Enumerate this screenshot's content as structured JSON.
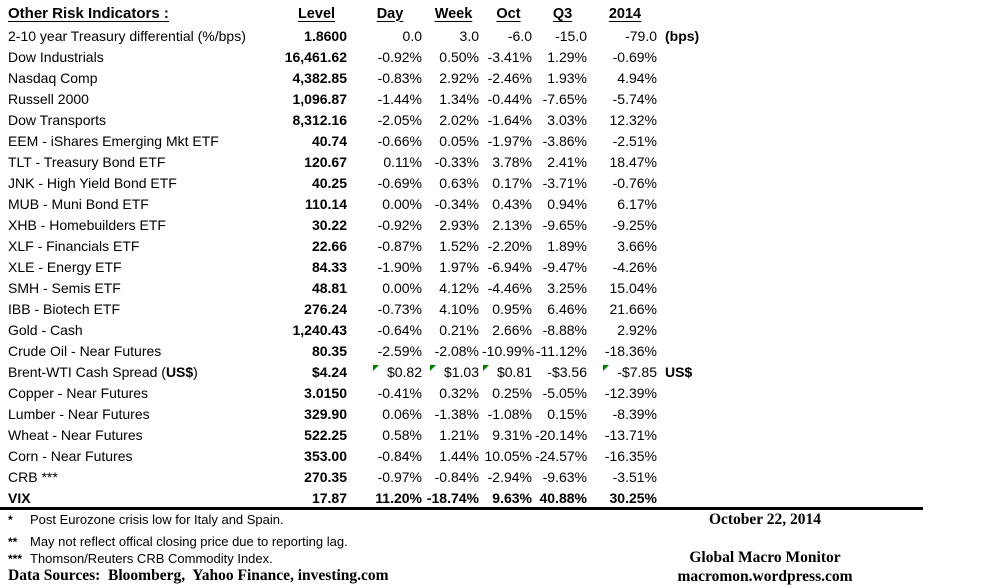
{
  "table": {
    "title": "Other Risk Indicators :",
    "columns": {
      "level": "Level",
      "day": "Day",
      "week": "Week",
      "oct": "Oct",
      "q3": "Q3",
      "y2014": "2014"
    },
    "rows": [
      {
        "name": "2-10 year Treasury differential (%/bps)",
        "level": "1.8600",
        "day": "0.0",
        "week": "3.0",
        "oct": "-6.0",
        "q3": "-15.0",
        "y2014": "-79.0",
        "note": "(bps)"
      },
      {
        "name": "Dow Industrials",
        "level": "16,461.62",
        "day": "-0.92%",
        "week": "0.50%",
        "oct": "-3.41%",
        "q3": "1.29%",
        "y2014": "-0.69%"
      },
      {
        "name": "Nasdaq Comp",
        "level": "4,382.85",
        "day": "-0.83%",
        "week": "2.92%",
        "oct": "-2.46%",
        "q3": "1.93%",
        "y2014": "4.94%"
      },
      {
        "name": "Russell 2000",
        "level": "1,096.87",
        "day": "-1.44%",
        "week": "1.34%",
        "oct": "-0.44%",
        "q3": "-7.65%",
        "y2014": "-5.74%"
      },
      {
        "name": "Dow Transports",
        "level": "8,312.16",
        "day": "-2.05%",
        "week": "2.02%",
        "oct": "-1.64%",
        "q3": "3.03%",
        "y2014": "12.32%"
      },
      {
        "name": "EEM - iShares Emerging Mkt ETF",
        "level": "40.74",
        "day": "-0.66%",
        "week": "0.05%",
        "oct": "-1.97%",
        "q3": "-3.86%",
        "y2014": "-2.51%"
      },
      {
        "name": "TLT - Treasury Bond ETF",
        "level": "120.67",
        "day": "0.11%",
        "week": "-0.33%",
        "oct": "3.78%",
        "q3": "2.41%",
        "y2014": "18.47%"
      },
      {
        "name": "JNK - High Yield Bond ETF",
        "level": "40.25",
        "day": "-0.69%",
        "week": "0.63%",
        "oct": "0.17%",
        "q3": "-3.71%",
        "y2014": "-0.76%"
      },
      {
        "name": "MUB - Muni Bond ETF",
        "level": "110.14",
        "day": "0.00%",
        "week": "-0.34%",
        "oct": "0.43%",
        "q3": "0.94%",
        "y2014": "6.17%"
      },
      {
        "name": "XHB - Homebuilders ETF",
        "level": "30.22",
        "day": "-0.92%",
        "week": "2.93%",
        "oct": "2.13%",
        "q3": "-9.65%",
        "y2014": "-9.25%"
      },
      {
        "name": "XLF - Financials ETF",
        "level": "22.66",
        "day": "-0.87%",
        "week": "1.52%",
        "oct": "-2.20%",
        "q3": "1.89%",
        "y2014": "3.66%"
      },
      {
        "name": "XLE - Energy ETF",
        "level": "84.33",
        "day": "-1.90%",
        "week": "1.97%",
        "oct": "-6.94%",
        "q3": "-9.47%",
        "y2014": "-4.26%"
      },
      {
        "name": "SMH - Semis ETF",
        "level": "48.81",
        "day": "0.00%",
        "week": "4.12%",
        "oct": "-4.46%",
        "q3": "3.25%",
        "y2014": "15.04%"
      },
      {
        "name": "IBB - Biotech ETF",
        "level": "276.24",
        "day": "-0.73%",
        "week": "4.10%",
        "oct": "0.95%",
        "q3": "6.46%",
        "y2014": "21.66%"
      },
      {
        "name": "Gold - Cash",
        "level": "1,240.43",
        "day": "-0.64%",
        "week": "0.21%",
        "oct": "2.66%",
        "q3": "-8.88%",
        "y2014": "2.92%"
      },
      {
        "name": "Crude Oil - Near Futures",
        "level": "80.35",
        "day": "-2.59%",
        "week": "-2.08%",
        "oct": "-10.99%",
        "q3": "-11.12%",
        "y2014": "-18.36%"
      },
      {
        "name": "Brent-WTI Cash Spread (US$)",
        "name_parts": {
          "pre": "Brent-WTI Cash Spread (",
          "bold": "US$",
          "post": ")"
        },
        "level": "$4.24",
        "day": "$0.82",
        "week": "$1.03",
        "oct": "$0.81",
        "q3": "-$3.56",
        "y2014": "-$7.85",
        "note": "US$",
        "flags": [
          "day",
          "week",
          "oct",
          "y2014"
        ]
      },
      {
        "name": "Copper - Near Futures",
        "level": "3.0150",
        "day": "-0.41%",
        "week": "0.32%",
        "oct": "0.25%",
        "q3": "-5.05%",
        "y2014": "-12.39%"
      },
      {
        "name": "Lumber - Near Futures",
        "level": "329.90",
        "day": "0.06%",
        "week": "-1.38%",
        "oct": "-1.08%",
        "q3": "0.15%",
        "y2014": "-8.39%"
      },
      {
        "name": "Wheat - Near Futures",
        "level": "522.25",
        "day": "0.58%",
        "week": "1.21%",
        "oct": "9.31%",
        "q3": "-20.14%",
        "y2014": "-13.71%"
      },
      {
        "name": "Corn - Near Futures",
        "level": "353.00",
        "day": "-0.84%",
        "week": "1.44%",
        "oct": "10.05%",
        "q3": "-24.57%",
        "y2014": "-16.35%"
      },
      {
        "name": "CRB ***",
        "level": "270.35",
        "day": "-0.97%",
        "week": "-0.84%",
        "oct": "-2.94%",
        "q3": "-9.63%",
        "y2014": "-3.51%"
      },
      {
        "name": "VIX",
        "level": "17.87",
        "day": "11.20%",
        "week": "-18.74%",
        "oct": "9.63%",
        "q3": "40.88%",
        "y2014": "30.25%",
        "bold": true
      }
    ]
  },
  "footnotes": [
    {
      "marker": "*",
      "text": "Post Eurozone crisis low for Italy and Spain."
    },
    {
      "marker": "**",
      "text": "May not reflect offical closing price due to reporting lag."
    },
    {
      "marker": "***",
      "text": "Thomson/Reuters CRB Commodity Index."
    }
  ],
  "footer": {
    "data_sources": "Data Sources:  Bloomberg,  Yahoo Finance, investing.com",
    "right": {
      "date": "October 22, 2014",
      "brand": "Global Macro Monitor",
      "site": "macromon.wordpress.com"
    }
  },
  "colors": {
    "text": "#000000",
    "flag_green": "#008000",
    "rule": "#000000"
  }
}
